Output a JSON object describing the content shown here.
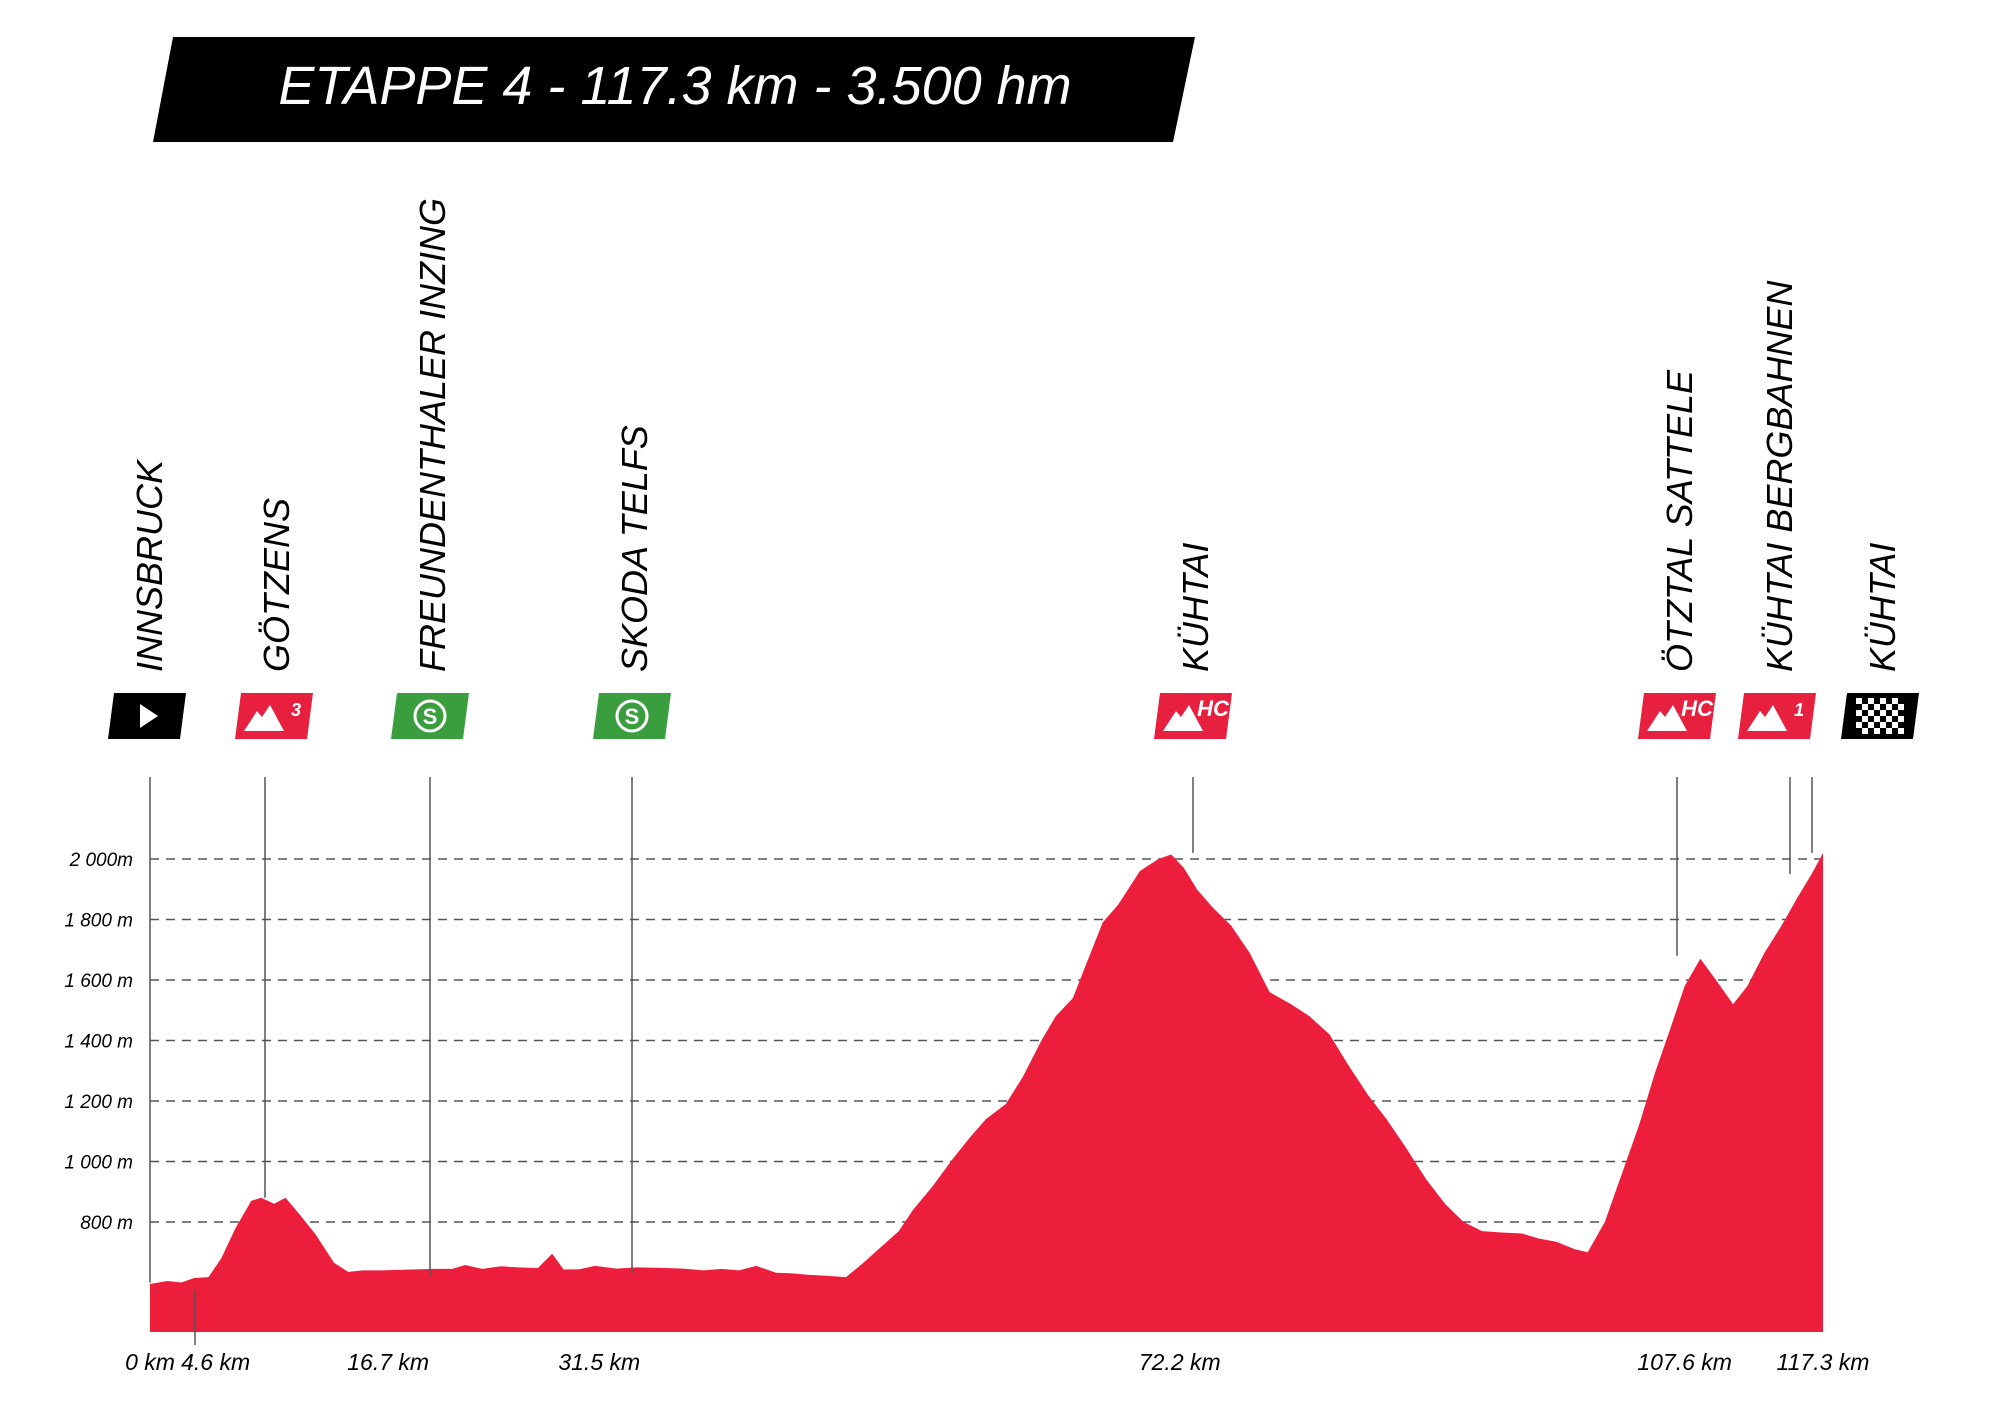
{
  "title": "ETAPPE 4 - 117.3 km - 3.500 hm",
  "colors": {
    "profile_fill": "#EC1E3C",
    "climb_marker": "#E8203F",
    "sprint_marker": "#3A9E3F",
    "start_finish_marker": "#000000",
    "banner": "#000000",
    "banner_text": "#ffffff"
  },
  "waypoints": [
    {
      "name": "INNSBRUCK",
      "km": 0,
      "km_label": "0 km",
      "type": "start",
      "icon": "start-arrow-icon",
      "elevation": 600
    },
    {
      "name": "GÖTZENS",
      "km": 4.6,
      "km_label": "4.6 km",
      "type": "climb",
      "category": "3",
      "icon": "mountain-icon",
      "elevation": 880
    },
    {
      "name": "FREUNDENTHALER INZING",
      "km": 16.7,
      "km_label": "16.7 km",
      "type": "sprint",
      "category": "S",
      "icon": "sprint-icon",
      "elevation": 620
    },
    {
      "name": "SKODA TELFS",
      "km": 31.5,
      "km_label": "31.5 km",
      "type": "sprint",
      "category": "S",
      "icon": "sprint-icon",
      "elevation": 630
    },
    {
      "name": "KÜHTAI",
      "km": 72.2,
      "km_label": "72.2 km",
      "type": "climb",
      "category": "HC",
      "icon": "mountain-icon",
      "elevation": 2020
    },
    {
      "name": "ÖTZTAL SATTELE",
      "km": 107.6,
      "km_label": "107.6 km",
      "type": "climb",
      "category": "HC",
      "icon": "mountain-icon",
      "elevation": 1680
    },
    {
      "name": "KÜHTAI BERGBAHNEN",
      "km": 116,
      "km_label": "",
      "type": "climb",
      "category": "1",
      "icon": "mountain-icon",
      "elevation": 1950
    },
    {
      "name": "KÜHTAI",
      "km": 117.3,
      "km_label": "117.3 km",
      "type": "finish",
      "icon": "checkered-flag-icon",
      "elevation": 2020
    }
  ],
  "chart_data": {
    "type": "area",
    "title": "ETAPPE 4 - 117.3 km - 3.500 hm",
    "xlabel": "",
    "ylabel": "",
    "xlim": [
      0,
      117.3
    ],
    "ylim": [
      430,
      2100
    ],
    "x_unit": "km",
    "y_unit": "m",
    "y_ticks": [
      2000,
      1800,
      1600,
      1400,
      1200,
      1000,
      800
    ],
    "y_tick_labels": [
      "2 000m",
      "1 800 m",
      "1 600 m",
      "1 400 m",
      "1 200 m",
      "1 000 m",
      "800 m"
    ],
    "x_tick_values": [
      0,
      4.6,
      16.7,
      31.5,
      72.2,
      107.6,
      117.3
    ],
    "x_tick_labels": [
      "0 km",
      "4.6 km",
      "16.7 km",
      "31.5 km",
      "72.2 km",
      "107.6 km",
      "117.3 km"
    ],
    "grid": "horizontal-dashed",
    "series": [
      {
        "x": [
          0,
          1.2,
          2.2,
          3.1,
          4.1,
          5.0,
          6.0,
          7.1,
          7.8,
          8.7,
          9.5,
          10.4,
          11.6,
          12.9,
          13.9,
          14.9,
          16.2,
          17.7,
          19.9,
          21.2,
          22.1,
          23.3,
          24.6,
          25.8,
          27.2,
          28.2,
          29.0,
          30.1,
          31.2,
          32.7,
          34.1,
          35.6,
          37.4,
          38.8,
          40.1,
          41.3,
          42.5,
          43.9,
          45.1,
          46.2,
          47.4,
          48.8,
          49.9,
          51.2,
          52.5,
          53.5,
          54.9,
          56.3,
          57.5,
          58.6,
          60.0,
          61.2,
          62.5,
          63.5,
          64.7,
          65.7,
          66.8,
          67.9,
          69.4,
          70.7,
          71.6,
          72.5,
          73.4,
          74.5,
          75.8,
          77.1,
          78.5,
          80.0,
          81.3,
          82.7,
          84.0,
          85.4,
          86.7,
          88.0,
          89.5,
          90.8,
          92.1,
          93.4,
          94.9,
          96.2,
          97.4,
          98.6,
          99.9,
          100.8,
          102.0,
          103.2,
          104.4,
          105.5,
          106.6,
          107.6,
          108.7,
          109.8,
          111.0,
          112.0,
          113.2,
          114.4,
          115.6,
          116.5,
          117.3
        ],
        "y": [
          595,
          605,
          600,
          615,
          618,
          680,
          780,
          870,
          880,
          860,
          880,
          830,
          760,
          665,
          635,
          640,
          640,
          642,
          645,
          645,
          658,
          645,
          654,
          650,
          648,
          695,
          643,
          644,
          655,
          646,
          650,
          649,
          646,
          640,
          645,
          640,
          655,
          632,
          630,
          625,
          622,
          618,
          660,
          715,
          770,
          840,
          920,
          1010,
          1080,
          1140,
          1190,
          1280,
          1400,
          1480,
          1540,
          1660,
          1790,
          1850,
          1960,
          2000,
          2015,
          1970,
          1900,
          1840,
          1780,
          1690,
          1560,
          1520,
          1480,
          1420,
          1320,
          1220,
          1140,
          1050,
          940,
          860,
          800,
          770,
          765,
          762,
          745,
          735,
          710,
          700,
          800,
          960,
          1120,
          1290,
          1440,
          1580,
          1670,
          1600,
          1520,
          1580,
          1690,
          1780,
          1880,
          1950,
          2020
        ]
      }
    ]
  }
}
